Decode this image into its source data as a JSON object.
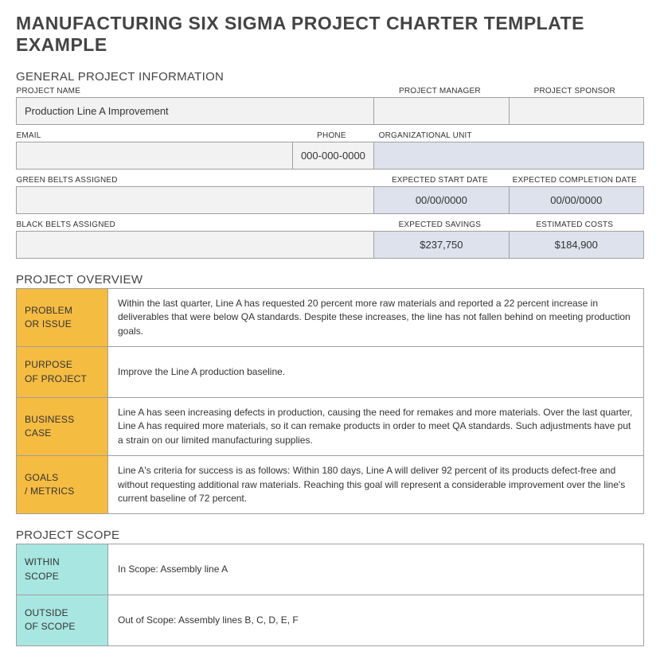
{
  "title": "MANUFACTURING SIX SIGMA PROJECT CHARTER TEMPLATE EXAMPLE",
  "sections": {
    "general": {
      "title": "GENERAL PROJECT INFORMATION",
      "labels": {
        "project_name": "PROJECT NAME",
        "project_manager": "PROJECT MANAGER",
        "project_sponsor": "PROJECT SPONSOR",
        "email": "EMAIL",
        "phone": "PHONE",
        "org_unit": "ORGANIZATIONAL UNIT",
        "green_belts": "GREEN BELTS ASSIGNED",
        "expected_start": "EXPECTED START DATE",
        "expected_completion": "EXPECTED COMPLETION DATE",
        "black_belts": "BLACK BELTS ASSIGNED",
        "expected_savings": "EXPECTED SAVINGS",
        "estimated_costs": "ESTIMATED COSTS"
      },
      "values": {
        "project_name": "Production Line A Improvement",
        "project_manager": "",
        "project_sponsor": "",
        "email": "",
        "phone": "000-000-0000",
        "org_unit": "",
        "green_belts": "",
        "expected_start": "00/00/0000",
        "expected_completion": "00/00/0000",
        "black_belts": "",
        "expected_savings": "$237,750",
        "estimated_costs": "$184,900"
      }
    },
    "overview": {
      "title": "PROJECT OVERVIEW",
      "rows": [
        {
          "label": "PROBLEM OR ISSUE",
          "content": "Within the last quarter, Line A has requested 20 percent more raw materials and reported a 22 percent increase in deliverables that were below QA standards. Despite these increases, the line has not fallen behind on meeting production goals."
        },
        {
          "label": "PURPOSE OF PROJECT",
          "content": "Improve the Line A production baseline."
        },
        {
          "label": "BUSINESS CASE",
          "content": "Line A has seen increasing defects in production, causing the need for remakes and more materials. Over the last quarter, Line A has required more materials, so it can remake products in order to meet QA standards. Such adjustments have put a strain on our limited manufacturing supplies."
        },
        {
          "label": "GOALS / METRICS",
          "content": "Line A's criteria for success is as follows: Within 180 days, Line A will deliver 92 percent of its products defect-free and without requesting additional raw materials. Reaching this goal will represent a considerable improvement over the line's current baseline of 72 percent."
        }
      ]
    },
    "scope": {
      "title": "PROJECT SCOPE",
      "rows": [
        {
          "label": "WITHIN SCOPE",
          "content": "In Scope: Assembly line A"
        },
        {
          "label": "OUTSIDE OF SCOPE",
          "content": "Out of Scope: Assembly lines B, C, D, E, F"
        }
      ]
    }
  },
  "colors": {
    "title_text": "#444444",
    "label_yellow": "#f5bc42",
    "label_teal": "#a8e6e1",
    "cell_gray": "#f2f2f2",
    "cell_blue": "#dde2ed",
    "border": "#a0a0a0",
    "text": "#333333"
  }
}
